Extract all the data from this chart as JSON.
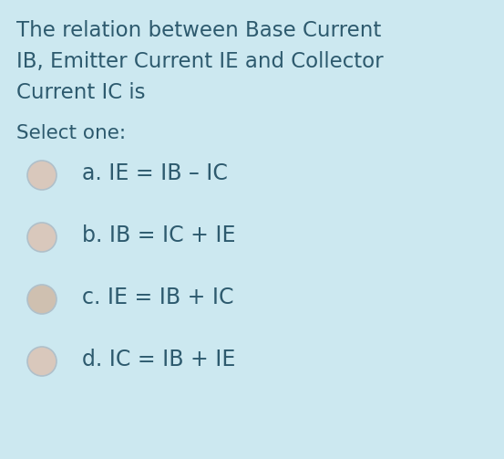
{
  "background_color": "#cce8f0",
  "text_color": "#2d5a6e",
  "title_lines": [
    "The relation between Base Current",
    "IB, Emitter Current IE and Collector",
    "Current IC is"
  ],
  "select_label": "Select one:",
  "options": [
    "a. IE = IB – IC",
    "b. IB = IC + IE",
    "c. IE = IB + IC",
    "d. IC = IB + IE"
  ],
  "title_fontsize": 16.5,
  "select_fontsize": 15.5,
  "option_fontsize": 17,
  "radio_fill_colors": [
    "#d9c8bc",
    "#d9c8bc",
    "#cfc0b0",
    "#d9c8bc"
  ],
  "radio_edge_color": "#b0c0ca",
  "radio_linewidth": 1.2
}
